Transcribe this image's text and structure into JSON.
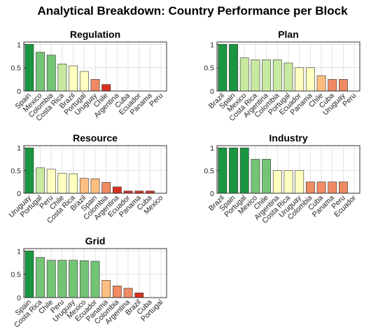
{
  "title": "Analytical Breakdown: Country Performance per Block",
  "colors": {
    "scale": [
      "#1a9641",
      "#74c476",
      "#c7e9a0",
      "#ffffbf",
      "#fdbf80",
      "#ef8a62",
      "#d7301f"
    ]
  },
  "chart_data": [
    {
      "type": "bar",
      "title": "Regulation",
      "categories": [
        "Spain",
        "Mexico",
        "Colombia",
        "Costa Rica",
        "Brazil",
        "Portugal",
        "Uruguay",
        "Chile",
        "Argentina",
        "Cuba",
        "Ecuador",
        "Panama",
        "Peru"
      ],
      "values": [
        1.0,
        0.83,
        0.77,
        0.58,
        0.54,
        0.42,
        0.25,
        0.14,
        0,
        0,
        0,
        0,
        0
      ],
      "ylim": [
        0,
        1.05
      ],
      "yticks": [
        "0",
        "0.5",
        "1"
      ],
      "grid": true
    },
    {
      "type": "bar",
      "title": "Plan",
      "categories": [
        "Brazil",
        "Spain",
        "Mexico",
        "Costa Rica",
        "Argentina",
        "Colombia",
        "Portugal",
        "Ecuador",
        "Panama",
        "Chile",
        "Cuba",
        "Uruguay",
        "Peru"
      ],
      "values": [
        1.0,
        1.0,
        0.71,
        0.67,
        0.67,
        0.67,
        0.6,
        0.5,
        0.5,
        0.33,
        0.25,
        0.25,
        0
      ],
      "ylim": [
        0,
        1.05
      ],
      "yticks": [
        "0",
        "0.5",
        "1"
      ],
      "grid": true
    },
    {
      "type": "bar",
      "title": "Resource",
      "categories": [
        "Uruguay",
        "Portugal",
        "Peru",
        "Chile",
        "Costa Rica",
        "Brazil",
        "Spain",
        "Colombia",
        "Argentina",
        "Ecuador",
        "Panama",
        "Cuba",
        "Mexico"
      ],
      "values": [
        1.0,
        0.56,
        0.53,
        0.44,
        0.43,
        0.33,
        0.32,
        0.24,
        0.14,
        0.05,
        0.05,
        0.05,
        0
      ],
      "ylim": [
        0,
        1.05
      ],
      "yticks": [
        "0",
        "0.5",
        "1"
      ],
      "grid": true
    },
    {
      "type": "bar",
      "title": "Industry",
      "categories": [
        "Brazil",
        "Spain",
        "Portugal",
        "Mexico",
        "Chile",
        "Argentina",
        "Costa Rica",
        "Uruguay",
        "Colombia",
        "Cuba",
        "Panama",
        "Peru",
        "Ecuador"
      ],
      "values": [
        1.0,
        1.0,
        1.0,
        0.75,
        0.75,
        0.5,
        0.5,
        0.5,
        0.25,
        0.25,
        0.25,
        0.25,
        0
      ],
      "ylim": [
        0,
        1.05
      ],
      "yticks": [
        "0",
        "0.5",
        "1"
      ],
      "grid": true
    },
    {
      "type": "bar",
      "title": "Grid",
      "categories": [
        "Spain",
        "Costa Rica",
        "Chile",
        "Peru",
        "Uruguay",
        "Mexico",
        "Ecuador",
        "Panama",
        "Colombia",
        "Argentina",
        "Brazil",
        "Cuba",
        "Portugal"
      ],
      "values": [
        1.0,
        0.86,
        0.8,
        0.8,
        0.8,
        0.79,
        0.78,
        0.37,
        0.25,
        0.2,
        0.1,
        0,
        0
      ],
      "ylim": [
        0,
        1.05
      ],
      "yticks": [
        "0",
        "0.5",
        "1"
      ],
      "grid": true
    }
  ]
}
